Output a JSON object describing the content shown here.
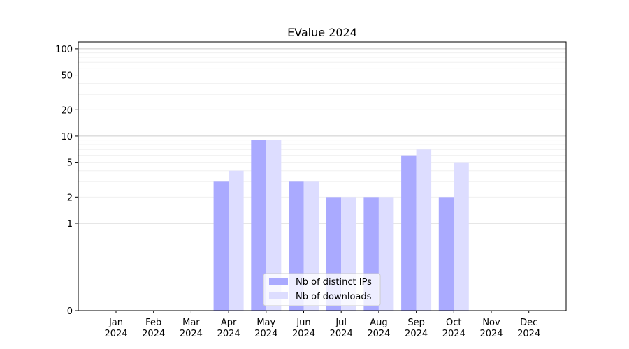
{
  "chart_data": {
    "type": "bar",
    "title": "EValue 2024",
    "xlabel": "",
    "ylabel": "",
    "yscale": "symlog",
    "ylim": [
      0,
      120
    ],
    "yticks": [
      0,
      1,
      2,
      5,
      10,
      20,
      50,
      100
    ],
    "grid": "horizontal",
    "legend_position": "bottom-center",
    "categories": [
      [
        "Jan",
        "2024"
      ],
      [
        "Feb",
        "2024"
      ],
      [
        "Mar",
        "2024"
      ],
      [
        "Apr",
        "2024"
      ],
      [
        "May",
        "2024"
      ],
      [
        "Jun",
        "2024"
      ],
      [
        "Jul",
        "2024"
      ],
      [
        "Aug",
        "2024"
      ],
      [
        "Sep",
        "2024"
      ],
      [
        "Oct",
        "2024"
      ],
      [
        "Nov",
        "2024"
      ],
      [
        "Dec",
        "2024"
      ]
    ],
    "series": [
      {
        "name": "Nb of distinct IPs",
        "color": "#aaaaff",
        "values": [
          0,
          0,
          0,
          3,
          9,
          3,
          2,
          2,
          6,
          2,
          0,
          0
        ]
      },
      {
        "name": "Nb of downloads",
        "color": "#ddddff",
        "values": [
          0,
          0,
          0,
          4,
          9,
          3,
          2,
          2,
          7,
          5,
          0,
          0
        ]
      }
    ]
  }
}
